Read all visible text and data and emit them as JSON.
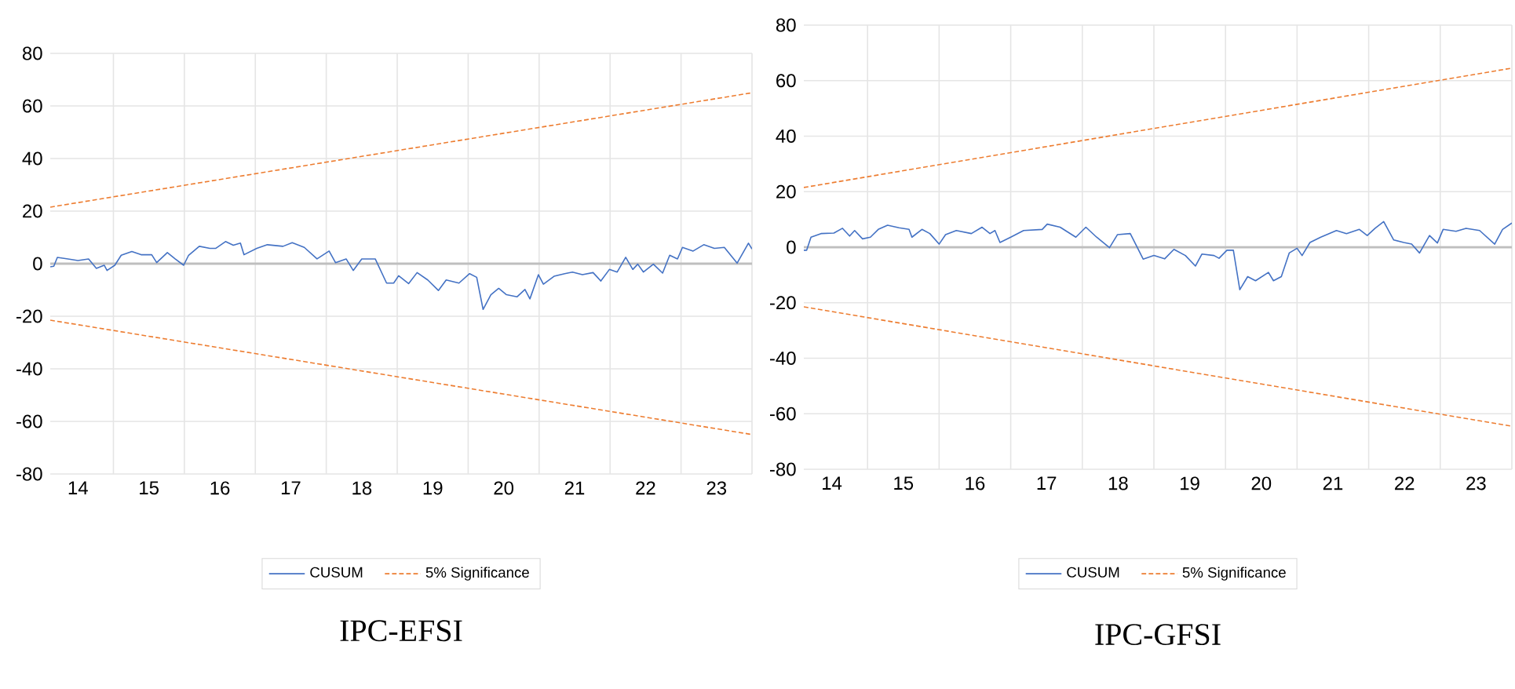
{
  "chart_data": [
    {
      "type": "line",
      "title": "IPC-EFSI",
      "xlim": [
        13.61,
        23.5
      ],
      "ylim": [
        -80,
        80
      ],
      "yticks": [
        -80,
        -60,
        -40,
        -20,
        0,
        20,
        40,
        60,
        80
      ],
      "xticks": [
        {
          "value": 14.5,
          "label": null
        },
        {
          "value": 15.5,
          "label": null
        },
        {
          "value": 16.5,
          "label": null
        },
        {
          "value": 17.5,
          "label": null
        },
        {
          "value": 18.5,
          "label": null
        },
        {
          "value": 19.5,
          "label": null
        },
        {
          "value": 20.5,
          "label": null
        },
        {
          "value": 21.5,
          "label": null
        },
        {
          "value": 22.5,
          "label": null
        },
        {
          "value": 23.5,
          "label": null
        },
        14,
        15,
        16,
        17,
        18,
        19,
        20,
        21,
        22,
        23
      ],
      "grid": true,
      "legend": "bottom",
      "series": [
        {
          "name": "CUSUM",
          "color": "#4472c4",
          "line_style": "solid",
          "x": [
            13.61,
            13.66,
            13.71,
            13.86,
            14.0,
            14.15,
            14.26,
            14.37,
            14.41,
            14.52,
            14.61,
            14.76,
            14.89,
            15.04,
            15.11,
            15.26,
            15.37,
            15.49,
            15.56,
            15.71,
            15.86,
            15.94,
            16.08,
            16.19,
            16.29,
            16.34,
            16.52,
            16.67,
            16.89,
            17.02,
            17.19,
            17.37,
            17.54,
            17.63,
            17.78,
            17.88,
            18.0,
            18.19,
            18.35,
            18.45,
            18.52,
            18.66,
            18.78,
            18.93,
            19.08,
            19.19,
            19.37,
            19.52,
            19.62,
            19.71,
            19.82,
            19.93,
            20.04,
            20.19,
            20.3,
            20.37,
            20.49,
            20.56,
            20.71,
            20.86,
            20.97,
            21.11,
            21.26,
            21.37,
            21.49,
            21.6,
            21.72,
            21.82,
            21.89,
            21.97,
            22.11,
            22.24,
            22.34,
            22.45,
            22.52,
            22.67,
            22.82,
            22.97,
            23.11,
            23.29,
            23.45,
            23.5
          ],
          "values": [
            -1.2,
            -1,
            2.4,
            1.8,
            1.2,
            1.8,
            -1.8,
            -0.6,
            -2.6,
            -0.6,
            3.2,
            4.6,
            3.4,
            3.4,
            0.4,
            4.2,
            1.8,
            -0.6,
            3.2,
            6.6,
            5.8,
            5.8,
            8.4,
            7,
            7.8,
            3.4,
            5.8,
            7.2,
            6.6,
            8,
            6.2,
            1.8,
            4.8,
            0.4,
            1.8,
            -2.6,
            1.8,
            1.8,
            -7.4,
            -7.4,
            -4.6,
            -7.6,
            -3.4,
            -6.2,
            -10.2,
            -6.2,
            -7.4,
            -3.8,
            -5.2,
            -17.4,
            -11.8,
            -9.4,
            -11.8,
            -12.6,
            -9.8,
            -13.4,
            -4.2,
            -7.8,
            -4.8,
            -3.8,
            -3.2,
            -4.2,
            -3.4,
            -6.6,
            -2.2,
            -3.2,
            2.4,
            -2.2,
            -0.2,
            -3.2,
            -0.2,
            -3.6,
            3.2,
            1.8,
            6.2,
            4.8,
            7.2,
            5.8,
            6.2,
            0.2,
            7.8,
            5.6
          ]
        },
        {
          "name": "5% Significance",
          "color": "#ed7d31",
          "line_style": "dashed",
          "x": [
            13.61,
            23.5
          ],
          "values": [
            21.5,
            65
          ]
        },
        {
          "color": "#ed7d31",
          "line_style": "dashed",
          "x": [
            13.61,
            23.5
          ],
          "values": [
            -21.5,
            -65
          ]
        }
      ]
    },
    {
      "type": "line",
      "title": "IPC-GFSI",
      "xlim": [
        13.61,
        23.5
      ],
      "ylim": [
        -80,
        80
      ],
      "yticks": [
        -80,
        -60,
        -40,
        -20,
        0,
        20,
        40,
        60,
        80
      ],
      "xticks": [
        {
          "value": 14.5,
          "label": null
        },
        {
          "value": 15.5,
          "label": null
        },
        {
          "value": 16.5,
          "label": null
        },
        {
          "value": 17.5,
          "label": null
        },
        {
          "value": 18.5,
          "label": null
        },
        {
          "value": 19.5,
          "label": null
        },
        {
          "value": 20.5,
          "label": null
        },
        {
          "value": 21.5,
          "label": null
        },
        {
          "value": 22.5,
          "label": null
        },
        {
          "value": 23.5,
          "label": null
        },
        14,
        15,
        16,
        17,
        18,
        19,
        20,
        21,
        22,
        23
      ],
      "grid": true,
      "legend": "bottom",
      "series": [
        {
          "name": "CUSUM",
          "color": "#4472c4",
          "line_style": "solid",
          "x": [
            13.61,
            13.65,
            13.71,
            13.85,
            14.03,
            14.15,
            14.25,
            14.32,
            14.43,
            14.54,
            14.65,
            14.78,
            14.94,
            15.08,
            15.12,
            15.26,
            15.37,
            15.5,
            15.59,
            15.74,
            15.95,
            16.1,
            16.21,
            16.28,
            16.35,
            16.5,
            16.68,
            16.94,
            17.01,
            17.19,
            17.41,
            17.55,
            17.7,
            17.88,
            17.99,
            18.17,
            18.35,
            18.5,
            18.65,
            18.78,
            18.94,
            19.08,
            19.17,
            19.34,
            19.41,
            19.52,
            19.61,
            19.7,
            19.81,
            19.92,
            20.1,
            20.17,
            20.28,
            20.39,
            20.5,
            20.57,
            20.68,
            20.83,
            21.05,
            21.19,
            21.37,
            21.48,
            21.59,
            21.71,
            21.85,
            21.99,
            22.1,
            22.21,
            22.35,
            22.46,
            22.54,
            22.72,
            22.86,
            23.05,
            23.26,
            23.37,
            23.5
          ],
          "values": [
            -1.1,
            -1.1,
            3.6,
            4.9,
            5.1,
            6.8,
            4,
            6,
            3,
            3.6,
            6.4,
            7.9,
            7,
            6.4,
            3.6,
            6.4,
            4.9,
            1.1,
            4.5,
            6,
            4.9,
            7.2,
            4.9,
            6,
            1.7,
            3.6,
            6,
            6.4,
            8.3,
            7.2,
            3.6,
            7.2,
            3.6,
            -0.2,
            4.5,
            4.9,
            -4.3,
            -3,
            -4.2,
            -0.8,
            -3,
            -6.8,
            -2.5,
            -3,
            -4,
            -1.1,
            -1.1,
            -15.3,
            -10.6,
            -12.1,
            -9.1,
            -12.1,
            -10.6,
            -2.1,
            -0.4,
            -3,
            1.7,
            3.6,
            6,
            4.9,
            6.4,
            4.2,
            6.8,
            9.2,
            2.6,
            1.7,
            1.1,
            -2.1,
            4.2,
            1.5,
            6.4,
            5.7,
            6.8,
            6,
            1.1,
            6.4,
            8.7
          ]
        },
        {
          "name": "5% Significance",
          "color": "#ed7d31",
          "line_style": "dashed",
          "x": [
            13.61,
            23.5
          ],
          "values": [
            21.5,
            64.5
          ]
        },
        {
          "color": "#ed7d31",
          "line_style": "dashed",
          "x": [
            13.61,
            23.5
          ],
          "values": [
            -21.5,
            -64.5
          ]
        }
      ]
    }
  ]
}
